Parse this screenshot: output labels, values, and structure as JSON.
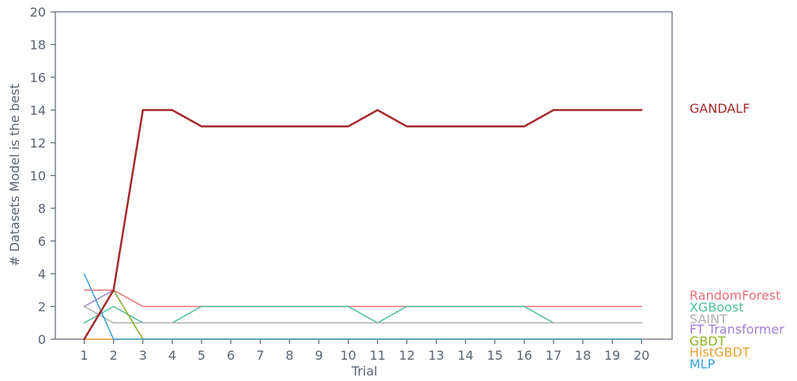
{
  "chart_data": {
    "type": "line",
    "xlabel": "Trial",
    "ylabel": "# Datasets Model is the best",
    "x": [
      1,
      2,
      3,
      4,
      5,
      6,
      7,
      8,
      9,
      10,
      11,
      12,
      13,
      14,
      15,
      16,
      17,
      18,
      19,
      20
    ],
    "ylim": [
      0,
      20
    ],
    "yticks": [
      0,
      2,
      4,
      6,
      8,
      10,
      12,
      14,
      16,
      18,
      20
    ],
    "grid": false,
    "legend": "end-of-line labels on right",
    "series": [
      {
        "name": "RandomForest",
        "color": "#e8727a",
        "width": 1.5,
        "values": [
          3,
          3,
          2,
          2,
          2,
          2,
          2,
          2,
          2,
          2,
          2,
          2,
          2,
          2,
          2,
          2,
          2,
          2,
          2,
          2
        ]
      },
      {
        "name": "XGBoost",
        "color": "#4dbf9a",
        "width": 1.5,
        "values": [
          1,
          2,
          1,
          1,
          2,
          2,
          2,
          2,
          2,
          2,
          1,
          2,
          2,
          2,
          2,
          2,
          1,
          1,
          1,
          1
        ]
      },
      {
        "name": "SAINT",
        "color": "#b0b0b0",
        "width": 1.5,
        "values": [
          2,
          1,
          1,
          1,
          1,
          1,
          1,
          1,
          1,
          1,
          1,
          1,
          1,
          1,
          1,
          1,
          1,
          1,
          1,
          1
        ]
      },
      {
        "name": "FT Transformer",
        "color": "#a07fd0",
        "width": 1.5,
        "values": [
          2,
          3,
          0,
          0,
          0,
          0,
          0,
          0,
          0,
          0,
          0,
          0,
          0,
          0,
          0,
          0,
          0,
          0,
          0,
          0
        ]
      },
      {
        "name": "GBDT",
        "color": "#8ab524",
        "width": 1.5,
        "values": [
          0,
          3,
          0,
          0,
          0,
          0,
          0,
          0,
          0,
          0,
          0,
          0,
          0,
          0,
          0,
          0,
          0,
          0,
          0,
          0
        ]
      },
      {
        "name": "HistGBDT",
        "color": "#eba135",
        "width": 1.5,
        "values": [
          0,
          0,
          0,
          0,
          0,
          0,
          0,
          0,
          0,
          0,
          0,
          0,
          0,
          0,
          0,
          0,
          0,
          0,
          0,
          0
        ]
      },
      {
        "name": "MLP",
        "color": "#36a2d9",
        "width": 1.5,
        "values": [
          4,
          0,
          0,
          0,
          0,
          0,
          0,
          0,
          0,
          0,
          0,
          0,
          0,
          0,
          0,
          0,
          0,
          0,
          0,
          0
        ]
      },
      {
        "name": "GANDALF",
        "color": "#a32a2a",
        "width": 2.5,
        "values": [
          0,
          3,
          14,
          14,
          13,
          13,
          13,
          13,
          13,
          13,
          14,
          13,
          13,
          13,
          13,
          13,
          14,
          14,
          14,
          14
        ]
      }
    ]
  }
}
